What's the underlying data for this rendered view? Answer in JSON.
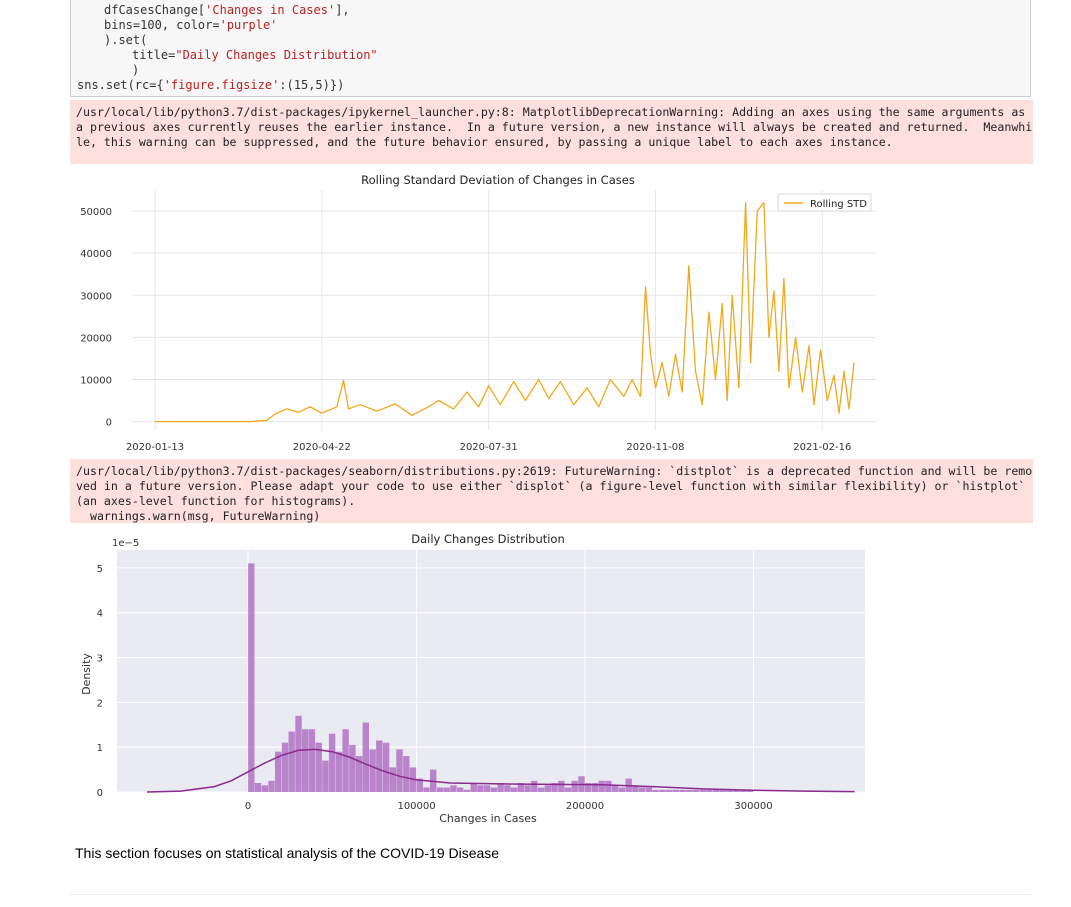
{
  "code": {
    "line1_prefix": "dfCasesChange[",
    "line1_str": "'Changes in Cases'",
    "line1_suffix": "],",
    "line2_prefix": "bins=100, color=",
    "line2_str": "'purple'",
    "line3": ").set(",
    "line4_prefix": "title=",
    "line4_str": "\"Daily Changes Distribution\"",
    "line5": ")",
    "line6_prefix": "sns.set(rc={",
    "line6_str": "'figure.figsize'",
    "line6_suffix": ":(15,5)})"
  },
  "warning1": {
    "line1": "/usr/local/lib/python3.7/dist-packages/ipykernel_launcher.py:8: MatplotlibDeprecationWarning: Adding an axes using the same arguments as",
    "line2": "a previous axes currently reuses the earlier instance.  In a future version, a new instance will always be created and returned.  Meanwhi",
    "line3": "le, this warning can be suppressed, and the future behavior ensured, by passing a unique label to each axes instance."
  },
  "warning2": {
    "line1": "/usr/local/lib/python3.7/dist-packages/seaborn/distributions.py:2619: FutureWarning: `distplot` is a deprecated function and will be remo",
    "line2": "ved in a future version. Please adapt your code to use either `displot` (a figure-level function with similar flexibility) or `histplot`",
    "line3": "(an axes-level function for histograms).",
    "line4": "  warnings.warn(msg, FutureWarning)"
  },
  "chart_data": [
    {
      "type": "line",
      "title": "Rolling Standard Deviation of Changes in Cases",
      "xlabel": "",
      "ylabel": "",
      "x_range": [
        "2020-01-13",
        "2021-03-10"
      ],
      "x_ticks": [
        "2020-01-13",
        "2020-04-22",
        "2020-07-31",
        "2020-11-08",
        "2021-02-16"
      ],
      "ylim": [
        -2000,
        55000
      ],
      "y_ticks": [
        0,
        10000,
        20000,
        30000,
        40000,
        50000
      ],
      "grid": true,
      "legend_position": "top-right",
      "series": [
        {
          "name": "Rolling STD",
          "color": "#f2a81d",
          "points": [
            [
              "2020-01-13",
              0
            ],
            [
              "2020-02-20",
              0
            ],
            [
              "2020-03-10",
              0
            ],
            [
              "2020-03-20",
              300
            ],
            [
              "2020-03-25",
              1800
            ],
            [
              "2020-04-01",
              3000
            ],
            [
              "2020-04-08",
              2200
            ],
            [
              "2020-04-15",
              3500
            ],
            [
              "2020-04-22",
              2000
            ],
            [
              "2020-05-01",
              3500
            ],
            [
              "2020-05-05",
              9800
            ],
            [
              "2020-05-08",
              3000
            ],
            [
              "2020-05-15",
              4000
            ],
            [
              "2020-05-25",
              2500
            ],
            [
              "2020-06-05",
              4200
            ],
            [
              "2020-06-15",
              1500
            ],
            [
              "2020-06-25",
              3500
            ],
            [
              "2020-07-01",
              5000
            ],
            [
              "2020-07-10",
              3000
            ],
            [
              "2020-07-18",
              7000
            ],
            [
              "2020-07-25",
              3500
            ],
            [
              "2020-07-31",
              8500
            ],
            [
              "2020-08-07",
              4000
            ],
            [
              "2020-08-15",
              9500
            ],
            [
              "2020-08-22",
              5000
            ],
            [
              "2020-08-30",
              10000
            ],
            [
              "2020-09-05",
              5500
            ],
            [
              "2020-09-12",
              9500
            ],
            [
              "2020-09-20",
              4000
            ],
            [
              "2020-09-28",
              8000
            ],
            [
              "2020-10-05",
              3500
            ],
            [
              "2020-10-12",
              10000
            ],
            [
              "2020-10-20",
              6000
            ],
            [
              "2020-10-25",
              10000
            ],
            [
              "2020-10-30",
              6000
            ],
            [
              "2020-11-02",
              32000
            ],
            [
              "2020-11-05",
              16000
            ],
            [
              "2020-11-08",
              8000
            ],
            [
              "2020-11-12",
              14000
            ],
            [
              "2020-11-16",
              6000
            ],
            [
              "2020-11-20",
              16000
            ],
            [
              "2020-11-24",
              7000
            ],
            [
              "2020-11-28",
              37000
            ],
            [
              "2020-12-02",
              12000
            ],
            [
              "2020-12-06",
              4000
            ],
            [
              "2020-12-10",
              26000
            ],
            [
              "2020-12-14",
              10000
            ],
            [
              "2020-12-18",
              28000
            ],
            [
              "2020-12-21",
              5000
            ],
            [
              "2020-12-24",
              30000
            ],
            [
              "2020-12-28",
              8000
            ],
            [
              "2021-01-01",
              52000
            ],
            [
              "2021-01-04",
              14000
            ],
            [
              "2021-01-08",
              50000
            ],
            [
              "2021-01-12",
              52000
            ],
            [
              "2021-01-15",
              20000
            ],
            [
              "2021-01-18",
              31000
            ],
            [
              "2021-01-21",
              12000
            ],
            [
              "2021-01-24",
              34000
            ],
            [
              "2021-01-27",
              8000
            ],
            [
              "2021-01-31",
              20000
            ],
            [
              "2021-02-04",
              7000
            ],
            [
              "2021-02-08",
              18000
            ],
            [
              "2021-02-11",
              4000
            ],
            [
              "2021-02-15",
              17000
            ],
            [
              "2021-02-19",
              5000
            ],
            [
              "2021-02-23",
              11000
            ],
            [
              "2021-02-26",
              2000
            ],
            [
              "2021-03-01",
              12000
            ],
            [
              "2021-03-04",
              3000
            ],
            [
              "2021-03-07",
              14000
            ]
          ]
        }
      ]
    },
    {
      "type": "bar",
      "title": "Daily Changes Distribution",
      "xlabel": "Changes in Cases",
      "ylabel": "Density",
      "y_multiplier": "1e−5",
      "xlim": [
        -60000,
        365000
      ],
      "x_ticks": [
        0,
        100000,
        200000,
        300000
      ],
      "ylim": [
        0,
        5.4
      ],
      "y_ticks": [
        0,
        1,
        2,
        3,
        4,
        5
      ],
      "grid": true,
      "bar_color": "#b072c4",
      "kde_color": "#8a2a8c",
      "histogram": [
        [
          0,
          5.1
        ],
        [
          4000,
          0.2
        ],
        [
          8000,
          0.15
        ],
        [
          12000,
          0.25
        ],
        [
          16000,
          0.9
        ],
        [
          20000,
          1.1
        ],
        [
          24000,
          1.35
        ],
        [
          28000,
          1.7
        ],
        [
          32000,
          1.4
        ],
        [
          36000,
          1.4
        ],
        [
          40000,
          1.1
        ],
        [
          44000,
          0.7
        ],
        [
          48000,
          1.3
        ],
        [
          52000,
          0.9
        ],
        [
          56000,
          1.4
        ],
        [
          60000,
          1.05
        ],
        [
          64000,
          0.8
        ],
        [
          68000,
          1.55
        ],
        [
          72000,
          0.95
        ],
        [
          76000,
          1.15
        ],
        [
          80000,
          1.1
        ],
        [
          84000,
          0.55
        ],
        [
          88000,
          0.95
        ],
        [
          92000,
          0.8
        ],
        [
          96000,
          0.55
        ],
        [
          100000,
          0.3
        ],
        [
          104000,
          0.1
        ],
        [
          108000,
          0.5
        ],
        [
          112000,
          0.1
        ],
        [
          116000,
          0.1
        ],
        [
          120000,
          0.15
        ],
        [
          124000,
          0.1
        ],
        [
          128000,
          0.05
        ],
        [
          132000,
          0.2
        ],
        [
          136000,
          0.15
        ],
        [
          140000,
          0.15
        ],
        [
          144000,
          0.1
        ],
        [
          148000,
          0.2
        ],
        [
          152000,
          0.15
        ],
        [
          156000,
          0.1
        ],
        [
          160000,
          0.2
        ],
        [
          164000,
          0.15
        ],
        [
          168000,
          0.25
        ],
        [
          172000,
          0.1
        ],
        [
          176000,
          0.15
        ],
        [
          180000,
          0.2
        ],
        [
          184000,
          0.25
        ],
        [
          188000,
          0.1
        ],
        [
          192000,
          0.25
        ],
        [
          196000,
          0.35
        ],
        [
          200000,
          0.2
        ],
        [
          204000,
          0.2
        ],
        [
          208000,
          0.25
        ],
        [
          212000,
          0.25
        ],
        [
          216000,
          0.15
        ],
        [
          220000,
          0.1
        ],
        [
          224000,
          0.3
        ],
        [
          228000,
          0.15
        ],
        [
          232000,
          0.1
        ],
        [
          236000,
          0.1
        ],
        [
          240000,
          0.05
        ],
        [
          244000,
          0.05
        ],
        [
          248000,
          0.05
        ],
        [
          252000,
          0.05
        ],
        [
          256000,
          0.05
        ],
        [
          260000,
          0.05
        ],
        [
          264000,
          0.05
        ],
        [
          268000,
          0.05
        ],
        [
          272000,
          0.05
        ],
        [
          276000,
          0.05
        ],
        [
          280000,
          0.05
        ],
        [
          284000,
          0.05
        ],
        [
          288000,
          0.05
        ],
        [
          292000,
          0.05
        ],
        [
          296000,
          0.05
        ]
      ],
      "kde": [
        [
          -60000,
          0.0
        ],
        [
          -40000,
          0.02
        ],
        [
          -20000,
          0.12
        ],
        [
          -10000,
          0.25
        ],
        [
          0,
          0.45
        ],
        [
          10000,
          0.65
        ],
        [
          20000,
          0.82
        ],
        [
          30000,
          0.93
        ],
        [
          40000,
          0.95
        ],
        [
          50000,
          0.9
        ],
        [
          60000,
          0.78
        ],
        [
          70000,
          0.62
        ],
        [
          80000,
          0.47
        ],
        [
          90000,
          0.35
        ],
        [
          100000,
          0.27
        ],
        [
          120000,
          0.2
        ],
        [
          150000,
          0.18
        ],
        [
          180000,
          0.17
        ],
        [
          210000,
          0.16
        ],
        [
          240000,
          0.12
        ],
        [
          270000,
          0.07
        ],
        [
          300000,
          0.04
        ],
        [
          330000,
          0.02
        ],
        [
          360000,
          0.01
        ]
      ]
    }
  ],
  "markdown": {
    "text": "This section focuses on statistical analysis of the COVID-19 Disease"
  }
}
